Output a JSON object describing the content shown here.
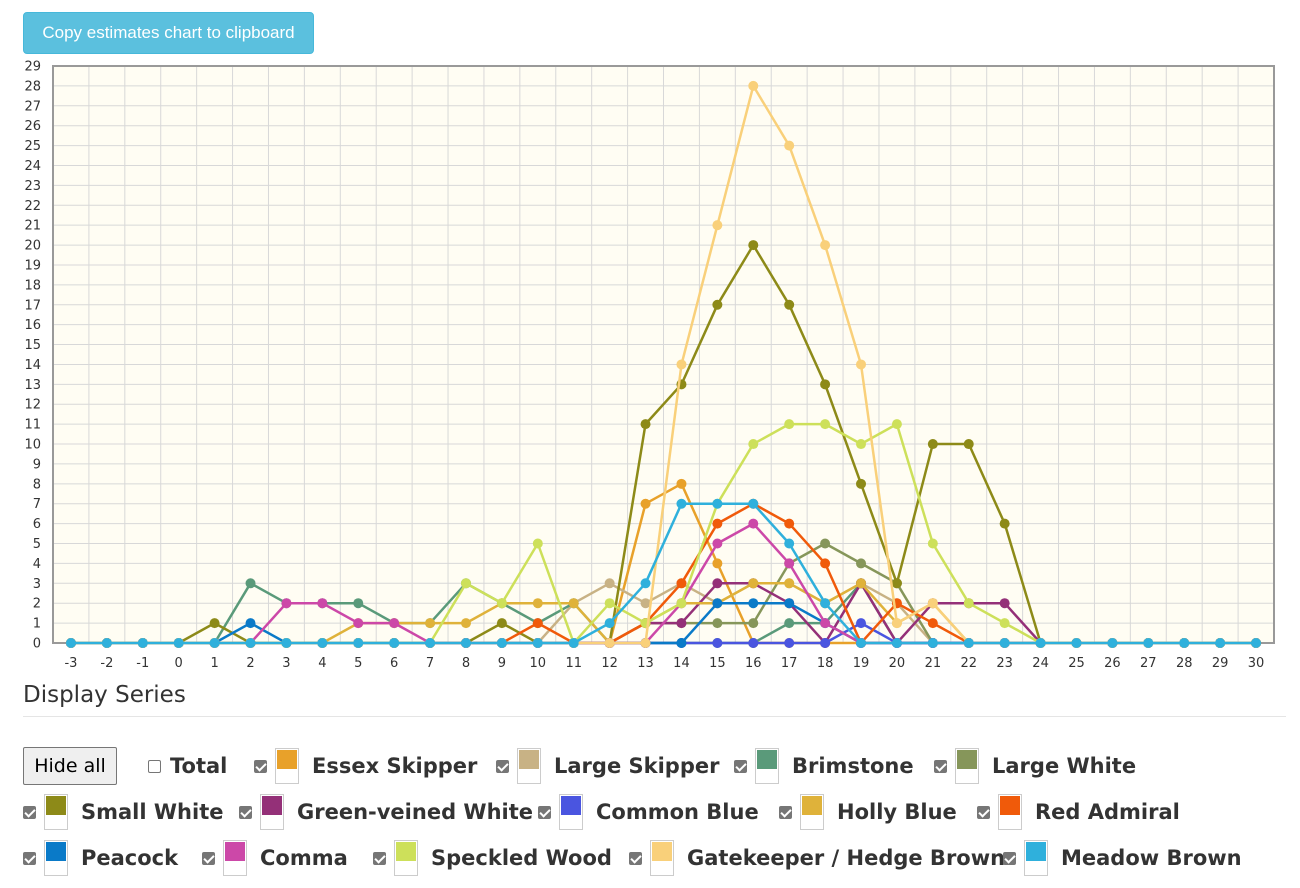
{
  "copy_button_label": "Copy estimates chart to clipboard",
  "section_title": "Display Series",
  "hide_all_label": "Hide all",
  "total": {
    "label": "Total",
    "checked": false
  },
  "legend": [
    {
      "name": "Essex Skipper",
      "color": "#e8a12a",
      "checked": true
    },
    {
      "name": "Large Skipper",
      "color": "#c8b285",
      "checked": true
    },
    {
      "name": "Brimstone",
      "color": "#5a9a7a",
      "checked": true
    },
    {
      "name": "Large White",
      "color": "#86965a",
      "checked": true
    },
    {
      "name": "Small White",
      "color": "#8d8a18",
      "checked": true
    },
    {
      "name": "Green-veined White",
      "color": "#943078",
      "checked": true
    },
    {
      "name": "Common Blue",
      "color": "#4a55e0",
      "checked": true
    },
    {
      "name": "Holly Blue",
      "color": "#dfb23a",
      "checked": true
    },
    {
      "name": "Red Admiral",
      "color": "#f05a0a",
      "checked": true
    },
    {
      "name": "Peacock",
      "color": "#0a7ac8",
      "checked": true
    },
    {
      "name": "Comma",
      "color": "#cc48a8",
      "checked": true
    },
    {
      "name": "Speckled Wood",
      "color": "#cde05a",
      "checked": true
    },
    {
      "name": "Gatekeeper / Hedge Brown",
      "color": "#f9d07a",
      "checked": true
    },
    {
      "name": "Meadow Brown",
      "color": "#2fb0dc",
      "checked": true
    }
  ],
  "chart_data": {
    "type": "line",
    "x": [
      -3,
      -2,
      -1,
      0,
      1,
      2,
      3,
      4,
      5,
      6,
      7,
      8,
      9,
      10,
      11,
      12,
      13,
      14,
      15,
      16,
      17,
      18,
      19,
      20,
      21,
      22,
      23,
      24,
      25,
      26,
      27,
      28,
      29,
      30
    ],
    "ylim": [
      0,
      29
    ],
    "xlim": [
      -3,
      30
    ],
    "x_ticks": [
      "-3",
      "-2",
      "-1",
      "0",
      "1",
      "2",
      "3",
      "4",
      "5",
      "6",
      "7",
      "8",
      "9",
      "10",
      "11",
      "12",
      "13",
      "14",
      "15",
      "16",
      "17",
      "18",
      "19",
      "20",
      "21",
      "22",
      "23",
      "24",
      "25",
      "26",
      "27",
      "28",
      "29",
      "30"
    ],
    "y_ticks": [
      "0",
      "1",
      "2",
      "3",
      "4",
      "5",
      "6",
      "7",
      "8",
      "9",
      "10",
      "11",
      "12",
      "13",
      "14",
      "15",
      "16",
      "17",
      "18",
      "19",
      "20",
      "21",
      "22",
      "23",
      "24",
      "25",
      "26",
      "27",
      "28",
      "29"
    ],
    "grid": true,
    "series": [
      {
        "name": "Essex Skipper",
        "color": "#e8a12a",
        "values": [
          0,
          0,
          0,
          0,
          0,
          0,
          0,
          0,
          0,
          0,
          0,
          0,
          0,
          0,
          0,
          0,
          7,
          8,
          4,
          0,
          0,
          0,
          0,
          0,
          0,
          0,
          0,
          0,
          0,
          0,
          0,
          0,
          0,
          0
        ]
      },
      {
        "name": "Large Skipper",
        "color": "#c8b285",
        "values": [
          0,
          0,
          0,
          0,
          0,
          0,
          0,
          0,
          0,
          0,
          0,
          0,
          0,
          0,
          2,
          3,
          2,
          3,
          2,
          3,
          3,
          2,
          3,
          2,
          0,
          0,
          0,
          0,
          0,
          0,
          0,
          0,
          0,
          0
        ]
      },
      {
        "name": "Brimstone",
        "color": "#5a9a7a",
        "values": [
          0,
          0,
          0,
          0,
          0,
          3,
          2,
          2,
          2,
          1,
          1,
          3,
          2,
          1,
          2,
          0,
          0,
          0,
          0,
          0,
          1,
          1,
          3,
          0,
          0,
          0,
          0,
          0,
          0,
          0,
          0,
          0,
          0,
          0
        ]
      },
      {
        "name": "Large White",
        "color": "#86965a",
        "values": [
          0,
          0,
          0,
          0,
          0,
          0,
          0,
          0,
          0,
          0,
          0,
          0,
          0,
          0,
          0,
          0,
          1,
          1,
          1,
          1,
          4,
          5,
          4,
          3,
          0,
          0,
          0,
          0,
          0,
          0,
          0,
          0,
          0,
          0
        ]
      },
      {
        "name": "Small White",
        "color": "#8d8a18",
        "values": [
          0,
          0,
          0,
          0,
          1,
          0,
          0,
          0,
          0,
          0,
          0,
          0,
          1,
          0,
          0,
          0,
          11,
          13,
          17,
          20,
          17,
          13,
          8,
          3,
          10,
          10,
          6,
          0,
          0,
          0,
          0,
          0,
          0,
          0
        ]
      },
      {
        "name": "Green-veined White",
        "color": "#943078",
        "values": [
          0,
          0,
          0,
          0,
          0,
          0,
          0,
          0,
          0,
          0,
          0,
          0,
          0,
          0,
          0,
          0,
          1,
          1,
          3,
          3,
          2,
          0,
          3,
          0,
          2,
          2,
          2,
          0,
          0,
          0,
          0,
          0,
          0,
          0
        ]
      },
      {
        "name": "Common Blue",
        "color": "#4a55e0",
        "values": [
          0,
          0,
          0,
          0,
          0,
          0,
          0,
          0,
          0,
          0,
          0,
          0,
          0,
          0,
          0,
          0,
          0,
          0,
          0,
          0,
          0,
          0,
          1,
          0,
          0,
          0,
          0,
          0,
          0,
          0,
          0,
          0,
          0,
          0
        ]
      },
      {
        "name": "Holly Blue",
        "color": "#dfb23a",
        "values": [
          0,
          0,
          0,
          0,
          0,
          0,
          0,
          0,
          1,
          1,
          1,
          1,
          2,
          2,
          2,
          0,
          1,
          2,
          2,
          3,
          3,
          2,
          3,
          1,
          2,
          0,
          0,
          0,
          0,
          0,
          0,
          0,
          0,
          0
        ]
      },
      {
        "name": "Red Admiral",
        "color": "#f05a0a",
        "values": [
          0,
          0,
          0,
          0,
          0,
          0,
          0,
          0,
          0,
          0,
          0,
          0,
          0,
          1,
          0,
          0,
          1,
          3,
          6,
          7,
          6,
          4,
          0,
          2,
          1,
          0,
          0,
          0,
          0,
          0,
          0,
          0,
          0,
          0
        ]
      },
      {
        "name": "Peacock",
        "color": "#0a7ac8",
        "values": [
          0,
          0,
          0,
          0,
          0,
          1,
          0,
          0,
          0,
          0,
          0,
          0,
          0,
          0,
          0,
          0,
          0,
          0,
          2,
          2,
          2,
          1,
          0,
          0,
          0,
          0,
          0,
          0,
          0,
          0,
          0,
          0,
          0,
          0
        ]
      },
      {
        "name": "Comma",
        "color": "#cc48a8",
        "values": [
          0,
          0,
          0,
          0,
          0,
          0,
          2,
          2,
          1,
          1,
          0,
          0,
          0,
          0,
          0,
          0,
          0,
          2,
          5,
          6,
          4,
          1,
          0,
          0,
          0,
          0,
          0,
          0,
          0,
          0,
          0,
          0,
          0,
          0
        ]
      },
      {
        "name": "Speckled Wood",
        "color": "#cde05a",
        "values": [
          0,
          0,
          0,
          0,
          0,
          0,
          0,
          0,
          0,
          0,
          0,
          3,
          2,
          5,
          0,
          2,
          1,
          2,
          7,
          10,
          11,
          11,
          10,
          11,
          5,
          2,
          1,
          0,
          0,
          0,
          0,
          0,
          0,
          0
        ]
      },
      {
        "name": "Gatekeeper / Hedge Brown",
        "color": "#f9d07a",
        "values": [
          0,
          0,
          0,
          0,
          0,
          0,
          0,
          0,
          0,
          0,
          0,
          0,
          0,
          0,
          0,
          0,
          0,
          14,
          21,
          28,
          25,
          20,
          14,
          1,
          2,
          0,
          0,
          0,
          0,
          0,
          0,
          0,
          0,
          0
        ]
      },
      {
        "name": "Meadow Brown",
        "color": "#2fb0dc",
        "values": [
          0,
          0,
          0,
          0,
          0,
          0,
          0,
          0,
          0,
          0,
          0,
          0,
          0,
          0,
          0,
          1,
          3,
          7,
          7,
          7,
          5,
          2,
          0,
          0,
          0,
          0,
          0,
          0,
          0,
          0,
          0,
          0,
          0,
          0
        ]
      }
    ]
  }
}
